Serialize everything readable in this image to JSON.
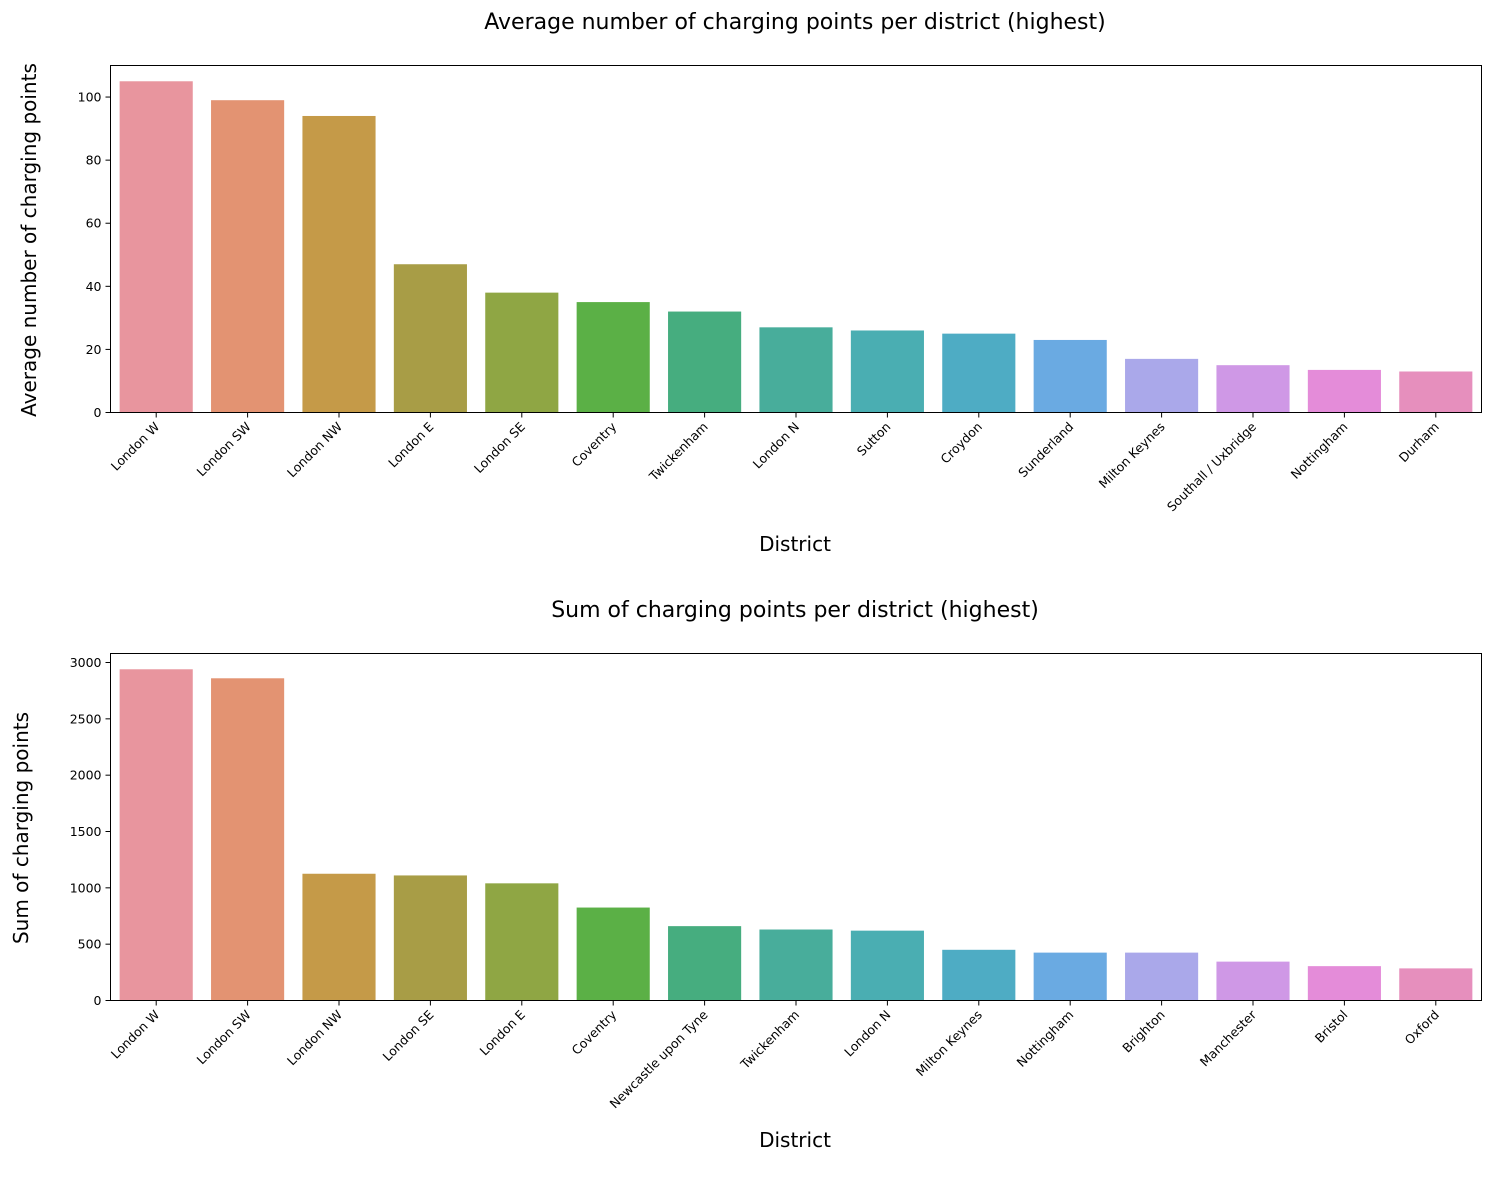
{
  "chart_data": [
    {
      "type": "bar",
      "title": "Average number of charging points per district (highest)",
      "xlabel": "District",
      "ylabel": "Average number of charging points",
      "categories": [
        "London W",
        "London SW",
        "London NW",
        "London E",
        "London SE",
        "Coventry",
        "Twickenham",
        "London N",
        "Sutton",
        "Croydon",
        "Sunderland",
        "Milton Keynes",
        "Southall / Uxbridge",
        "Nottingham",
        "Durham"
      ],
      "values": [
        105,
        99,
        94,
        47,
        38,
        35,
        32,
        27,
        26,
        25,
        23,
        17,
        15,
        13.5,
        13
      ],
      "yticks": [
        0,
        20,
        40,
        60,
        80,
        100
      ],
      "ylim": [
        0,
        110
      ],
      "colors": [
        "#e8959e",
        "#e39372",
        "#c59a48",
        "#a89d46",
        "#8fa644",
        "#5bb046",
        "#46ad7f",
        "#48ad9b",
        "#4aaeb2",
        "#4eacc4",
        "#6aaae2",
        "#aaa8ea",
        "#cf98e6",
        "#e48cd9",
        "#e68fbd"
      ],
      "grid": false,
      "legend": "none"
    },
    {
      "type": "bar",
      "title": "Sum of charging points per district (highest)",
      "xlabel": "District",
      "ylabel": "Sum of charging points",
      "categories": [
        "London W",
        "London SW",
        "London NW",
        "London SE",
        "London E",
        "Coventry",
        "Newcastle upon Tyne",
        "Twickenham",
        "London N",
        "Milton Keynes",
        "Nottingham",
        "Brighton",
        "Manchester",
        "Bristol",
        "Oxford"
      ],
      "values": [
        2940,
        2860,
        1125,
        1110,
        1040,
        825,
        660,
        630,
        620,
        450,
        425,
        425,
        345,
        305,
        285
      ],
      "yticks": [
        0,
        500,
        1000,
        1500,
        2000,
        2500,
        3000
      ],
      "ylim": [
        0,
        3080
      ],
      "colors": [
        "#e8959e",
        "#e39372",
        "#c59a48",
        "#a89d46",
        "#8fa644",
        "#5bb046",
        "#46ad7f",
        "#48ad9b",
        "#4aaeb2",
        "#4eacc4",
        "#6aaae2",
        "#aaa8ea",
        "#cf98e6",
        "#e48cd9",
        "#e68fbd"
      ],
      "grid": false,
      "legend": "none"
    }
  ]
}
